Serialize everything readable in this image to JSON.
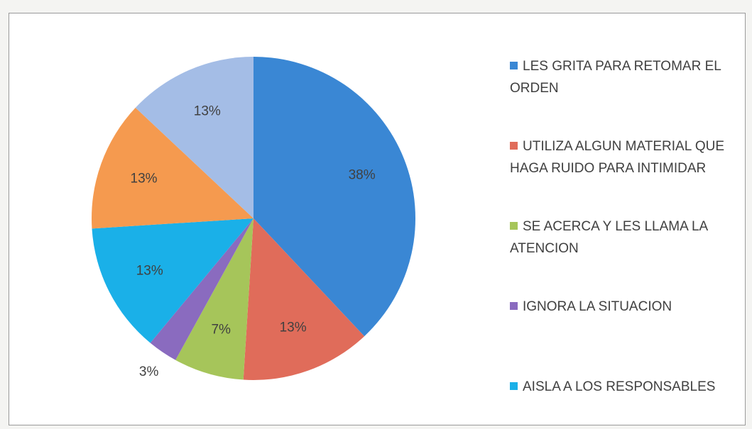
{
  "chart_data": {
    "type": "pie",
    "categories": [
      "LES GRITA PARA RETOMAR EL ORDEN",
      "UTILIZA ALGUN MATERIAL QUE HAGA RUIDO PARA INTIMIDAR",
      "SE ACERCA Y LES LLAMA LA ATENCION",
      "IGNORA LA SITUACION",
      "AISLA A LOS RESPONSABLES",
      null,
      null
    ],
    "values": [
      38,
      13,
      7,
      3,
      13,
      13,
      13
    ],
    "value_labels": [
      "38%",
      "13%",
      "7%",
      "3%",
      "13%",
      "13%",
      "13%"
    ],
    "colors": [
      "#3a87d4",
      "#e06c5a",
      "#a6c55a",
      "#8a6bbf",
      "#1ab0e8",
      "#f59a4f",
      "#a4bde6"
    ],
    "legend": "right"
  }
}
